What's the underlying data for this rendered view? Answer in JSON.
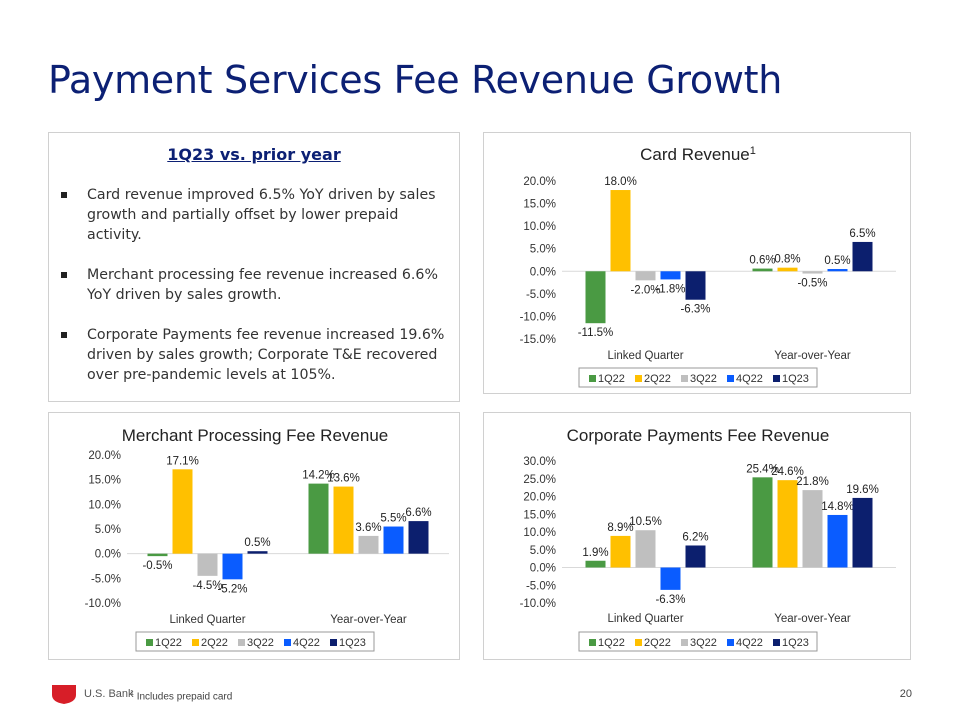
{
  "slide": {
    "title": "Payment Services Fee Revenue Growth",
    "page_number": "20",
    "footnote_marker": "1",
    "footnote_text": "Includes prepaid card",
    "brand": "U.S. Bank"
  },
  "summary": {
    "heading": "1Q23 vs. prior year",
    "bullets": [
      "Card revenue improved 6.5% YoY driven by sales growth and partially offset by lower prepaid activity.",
      "Merchant processing fee revenue increased 6.6% YoY driven by sales growth.",
      "Corporate Payments fee revenue increased 19.6% driven by sales growth; Corporate T&E recovered over pre-pandemic levels at 105%."
    ]
  },
  "colors": {
    "title": "#0c2074",
    "series": [
      "#4a9a43",
      "#ffc000",
      "#bfbfbf",
      "#0a5cff",
      "#0c1f6e"
    ],
    "logo": "#d71e28"
  },
  "chart_data": [
    {
      "type": "bar",
      "title": "Card Revenue",
      "title_superscript": "1",
      "categories": [
        "Linked Quarter",
        "Year-over-Year"
      ],
      "series": [
        {
          "name": "1Q22",
          "values": [
            -11.5,
            0.6
          ]
        },
        {
          "name": "2Q22",
          "values": [
            18.0,
            0.8
          ]
        },
        {
          "name": "3Q22",
          "values": [
            -2.0,
            -0.5
          ]
        },
        {
          "name": "4Q22",
          "values": [
            -1.8,
            0.5
          ]
        },
        {
          "name": "1Q23",
          "values": [
            -6.3,
            6.5
          ]
        }
      ],
      "ylim": [
        -15,
        20
      ],
      "yticks": [
        20,
        15,
        10,
        5,
        0,
        -5,
        -10,
        -15
      ],
      "legend": "bottom",
      "xlabel": "",
      "ylabel": ""
    },
    {
      "type": "bar",
      "title": "Merchant Processing Fee Revenue",
      "categories": [
        "Linked Quarter",
        "Year-over-Year"
      ],
      "series": [
        {
          "name": "1Q22",
          "values": [
            -0.5,
            14.2
          ]
        },
        {
          "name": "2Q22",
          "values": [
            17.1,
            13.6
          ]
        },
        {
          "name": "3Q22",
          "values": [
            -4.5,
            3.6
          ]
        },
        {
          "name": "4Q22",
          "values": [
            -5.2,
            5.5
          ]
        },
        {
          "name": "1Q23",
          "values": [
            0.5,
            6.6
          ]
        }
      ],
      "ylim": [
        -10,
        20
      ],
      "yticks": [
        20,
        15,
        10,
        5,
        0,
        -5,
        -10
      ],
      "legend": "bottom",
      "xlabel": "",
      "ylabel": ""
    },
    {
      "type": "bar",
      "title": "Corporate Payments Fee Revenue",
      "categories": [
        "Linked Quarter",
        "Year-over-Year"
      ],
      "series": [
        {
          "name": "1Q22",
          "values": [
            1.9,
            25.4
          ]
        },
        {
          "name": "2Q22",
          "values": [
            8.9,
            24.6
          ]
        },
        {
          "name": "3Q22",
          "values": [
            10.5,
            21.8
          ]
        },
        {
          "name": "4Q22",
          "values": [
            -6.3,
            14.8
          ]
        },
        {
          "name": "1Q23",
          "values": [
            6.2,
            19.6
          ]
        }
      ],
      "ylim": [
        -10,
        30
      ],
      "yticks": [
        30,
        25,
        20,
        15,
        10,
        5,
        0,
        -5,
        -10
      ],
      "legend": "bottom",
      "xlabel": "",
      "ylabel": ""
    }
  ]
}
